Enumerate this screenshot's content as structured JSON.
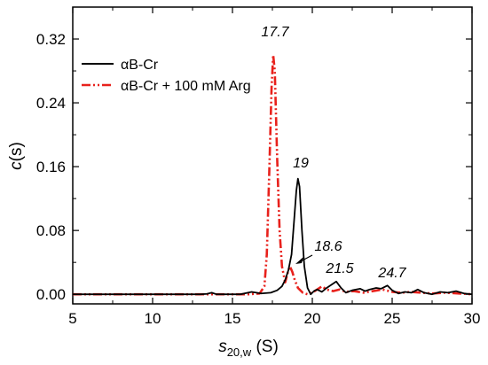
{
  "chart_data": {
    "type": "line",
    "xlabel_main": "s",
    "xlabel_sub": "20,w",
    "xlabel_unit": " (S)",
    "ylabel_main": "c",
    "ylabel_unit": "(s)",
    "xlim": [
      5,
      30
    ],
    "ylim": [
      -0.012,
      0.36
    ],
    "x_ticks": [
      "5",
      "10",
      "15",
      "20",
      "25",
      "30"
    ],
    "y_ticks": [
      "0.00",
      "0.08",
      "0.16",
      "0.24",
      "0.32"
    ],
    "legend_position": "upper-left",
    "series": [
      {
        "name": "αB-Cr",
        "color": "#000000",
        "style": "solid",
        "points": [
          [
            5,
            0.0
          ],
          [
            13,
            0.0
          ],
          [
            13.4,
            0.0005
          ],
          [
            13.7,
            0.002
          ],
          [
            14.0,
            0.0
          ],
          [
            15.5,
            0.0
          ],
          [
            16.2,
            0.003
          ],
          [
            16.8,
            0.001
          ],
          [
            17.4,
            0.002
          ],
          [
            17.8,
            0.005
          ],
          [
            18.1,
            0.01
          ],
          [
            18.3,
            0.018
          ],
          [
            18.5,
            0.03
          ],
          [
            18.7,
            0.05
          ],
          [
            18.85,
            0.09
          ],
          [
            19.0,
            0.13
          ],
          [
            19.1,
            0.145
          ],
          [
            19.2,
            0.135
          ],
          [
            19.35,
            0.08
          ],
          [
            19.5,
            0.035
          ],
          [
            19.7,
            0.008
          ],
          [
            19.9,
            0.0
          ],
          [
            20.1,
            0.004
          ],
          [
            20.3,
            0.006
          ],
          [
            20.6,
            0.003
          ],
          [
            20.9,
            0.008
          ],
          [
            21.2,
            0.012
          ],
          [
            21.5,
            0.016
          ],
          [
            21.8,
            0.008
          ],
          [
            22.1,
            0.002
          ],
          [
            22.5,
            0.005
          ],
          [
            23.0,
            0.007
          ],
          [
            23.3,
            0.004
          ],
          [
            23.6,
            0.006
          ],
          [
            24.0,
            0.008
          ],
          [
            24.3,
            0.007
          ],
          [
            24.7,
            0.011
          ],
          [
            25.0,
            0.005
          ],
          [
            25.4,
            0.001
          ],
          [
            25.8,
            0.003
          ],
          [
            26.2,
            0.002
          ],
          [
            26.6,
            0.006
          ],
          [
            27.0,
            0.002
          ],
          [
            27.5,
            0.0
          ],
          [
            28.0,
            0.003
          ],
          [
            28.5,
            0.002
          ],
          [
            29.0,
            0.004
          ],
          [
            29.5,
            0.001
          ],
          [
            30,
            0.0
          ]
        ]
      },
      {
        "name": "αB-Cr + 100 mM Arg",
        "color": "#e8211c",
        "style": "dash-dot-dot",
        "points": [
          [
            5,
            0.0
          ],
          [
            16.0,
            0.0
          ],
          [
            16.7,
            0.001
          ],
          [
            17.0,
            0.01
          ],
          [
            17.15,
            0.05
          ],
          [
            17.3,
            0.15
          ],
          [
            17.45,
            0.26
          ],
          [
            17.55,
            0.3
          ],
          [
            17.65,
            0.28
          ],
          [
            17.8,
            0.17
          ],
          [
            17.95,
            0.08
          ],
          [
            18.1,
            0.035
          ],
          [
            18.3,
            0.015
          ],
          [
            18.5,
            0.03
          ],
          [
            18.6,
            0.035
          ],
          [
            18.75,
            0.028
          ],
          [
            18.9,
            0.018
          ],
          [
            19.1,
            0.008
          ],
          [
            19.4,
            0.002
          ],
          [
            19.7,
            0.0
          ],
          [
            20.0,
            0.002
          ],
          [
            20.3,
            0.006
          ],
          [
            20.6,
            0.01
          ],
          [
            20.9,
            0.006
          ],
          [
            21.3,
            0.004
          ],
          [
            21.7,
            0.006
          ],
          [
            22.1,
            0.003
          ],
          [
            22.6,
            0.004
          ],
          [
            23.2,
            0.002
          ],
          [
            23.8,
            0.004
          ],
          [
            24.4,
            0.006
          ],
          [
            25.0,
            0.003
          ],
          [
            25.6,
            0.002
          ],
          [
            26.2,
            0.003
          ],
          [
            26.8,
            0.002
          ],
          [
            27.5,
            0.001
          ],
          [
            28.3,
            0.002
          ],
          [
            29.2,
            0.001
          ],
          [
            30,
            0.0
          ]
        ]
      }
    ],
    "annotations": [
      "17.7",
      "19",
      "18.6",
      "21.5",
      "24.7"
    ]
  }
}
